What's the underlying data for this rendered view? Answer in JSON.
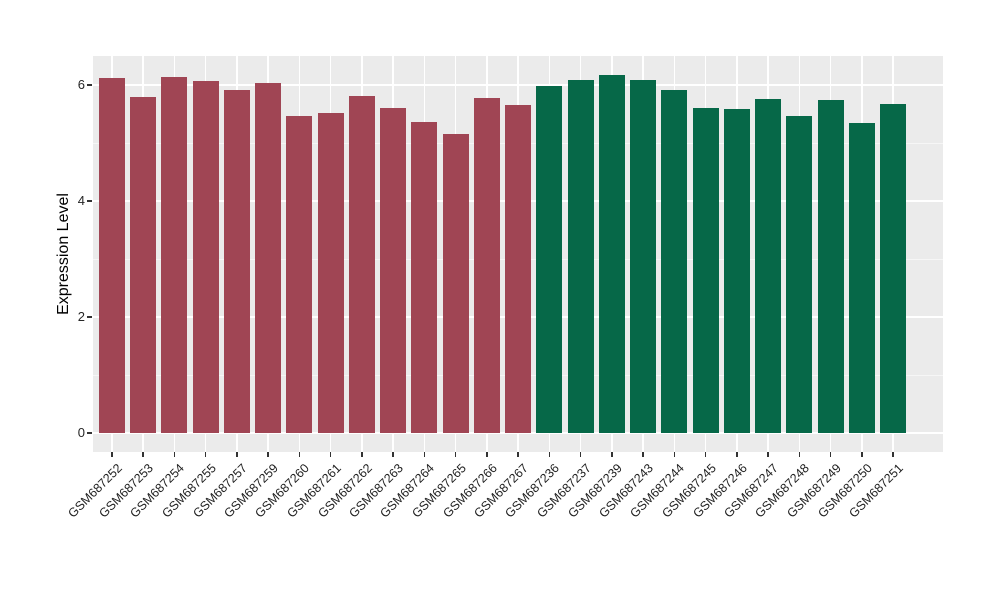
{
  "chart_data": {
    "type": "bar",
    "title": "",
    "xlabel": "",
    "ylabel": "Expression Level",
    "ylim": [
      0,
      6.5
    ],
    "yticks": [
      0,
      2,
      4,
      6
    ],
    "minor_gridlines": [
      1,
      3,
      5
    ],
    "grid": true,
    "legend_position": "none",
    "panel_bg": "#EBEBEB",
    "grid_color": "#FFFFFF",
    "tick_color": "#333333",
    "groups": [
      {
        "name": "group-1",
        "color": "#A04554",
        "bars": [
          {
            "label": "GSM687252",
            "value": 6.12
          },
          {
            "label": "GSM687253",
            "value": 5.8
          },
          {
            "label": "GSM687254",
            "value": 6.13
          },
          {
            "label": "GSM687255",
            "value": 6.07
          },
          {
            "label": "GSM687257",
            "value": 5.91
          },
          {
            "label": "GSM687259",
            "value": 6.03
          },
          {
            "label": "GSM687260",
            "value": 5.47
          },
          {
            "label": "GSM687261",
            "value": 5.52
          },
          {
            "label": "GSM687262",
            "value": 5.81
          },
          {
            "label": "GSM687263",
            "value": 5.61
          },
          {
            "label": "GSM687264",
            "value": 5.37
          },
          {
            "label": "GSM687265",
            "value": 5.15
          },
          {
            "label": "GSM687266",
            "value": 5.77
          },
          {
            "label": "GSM687267",
            "value": 5.66
          }
        ]
      },
      {
        "name": "group-2",
        "color": "#066848",
        "bars": [
          {
            "label": "GSM687236",
            "value": 5.98
          },
          {
            "label": "GSM687237",
            "value": 6.09
          },
          {
            "label": "GSM687239",
            "value": 6.18
          },
          {
            "label": "GSM687243",
            "value": 6.08
          },
          {
            "label": "GSM687244",
            "value": 5.91
          },
          {
            "label": "GSM687245",
            "value": 5.61
          },
          {
            "label": "GSM687246",
            "value": 5.58
          },
          {
            "label": "GSM687247",
            "value": 5.76
          },
          {
            "label": "GSM687248",
            "value": 5.47
          },
          {
            "label": "GSM687249",
            "value": 5.74
          },
          {
            "label": "GSM687250",
            "value": 5.35
          },
          {
            "label": "GSM687251",
            "value": 5.68
          }
        ]
      }
    ]
  }
}
